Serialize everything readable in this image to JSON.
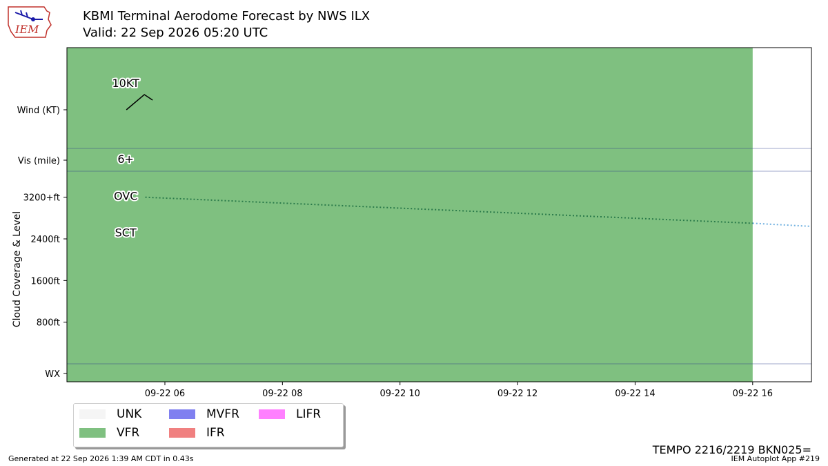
{
  "header": {
    "title_line1": "KBMI Terminal Aerodome Forecast by NWS ILX",
    "title_line2": "Valid: 22 Sep 2026 05:20 UTC",
    "logo_text": "IEM"
  },
  "colors": {
    "vfr": "#7fc080",
    "unk": "#f5f5f5",
    "mvfr": "#8080f0",
    "ifr": "#f08080",
    "lifr": "#ff80ff",
    "frame": "#000000",
    "separator": "#2a3a8a",
    "ceiling_line": "#2a7a4a",
    "ceiling_ext": "#6fb0e0",
    "logo": "#c0302a"
  },
  "legend": {
    "items": [
      {
        "key": "UNK",
        "label": "UNK",
        "color": "#f5f5f5"
      },
      {
        "key": "VFR",
        "label": "VFR",
        "color": "#7fc080"
      },
      {
        "key": "MVFR",
        "label": "MVFR",
        "color": "#8080f0"
      },
      {
        "key": "IFR",
        "label": "IFR",
        "color": "#f08080"
      },
      {
        "key": "LIFR",
        "label": "LIFR",
        "color": "#ff80ff"
      }
    ]
  },
  "footer": {
    "generated": "Generated at 22 Sep 2026 1:39 AM CDT in 0.43s",
    "app": "IEM Autoplot App #219",
    "raw_tempo": "TEMPO 2216/2219 BKN025="
  },
  "chart_data": {
    "type": "timeline",
    "title": "KBMI Terminal Aerodome Forecast by NWS ILX",
    "subtitle": "Valid: 22 Sep 2026 05:20 UTC",
    "ylabel": "Cloud Coverage & Level",
    "x_range": [
      "2026-09-22T04:20",
      "2026-09-22T17:00"
    ],
    "x_ticks": [
      {
        "time": "2026-09-22T06:00",
        "label": "09-22 06"
      },
      {
        "time": "2026-09-22T08:00",
        "label": "09-22 08"
      },
      {
        "time": "2026-09-22T10:00",
        "label": "09-22 10"
      },
      {
        "time": "2026-09-22T12:00",
        "label": "09-22 12"
      },
      {
        "time": "2026-09-22T14:00",
        "label": "09-22 14"
      },
      {
        "time": "2026-09-22T16:00",
        "label": "09-22 16"
      }
    ],
    "y_row_labels": {
      "wind": "Wind (KT)",
      "vis": "Vis (mile)",
      "wx": "WX"
    },
    "cloud_level_range_ft": [
      0,
      3700
    ],
    "cloud_ticks": [
      {
        "value": 3200,
        "label": "3200+ft"
      },
      {
        "value": 2400,
        "label": "2400ft"
      },
      {
        "value": 1600,
        "label": "1600ft"
      },
      {
        "value": 800,
        "label": "800ft"
      }
    ],
    "flight_category_periods": [
      {
        "start": "2026-09-22T04:20",
        "end": "2026-09-22T16:00",
        "category": "VFR"
      }
    ],
    "forecasts": [
      {
        "time": "2026-09-22T05:20",
        "wind_label": "10KT",
        "wind_speed_kt": 10,
        "vis_label": "6+",
        "clouds": [
          {
            "coverage": "OVC",
            "level_ft": 3200
          },
          {
            "coverage": "SCT",
            "level_ft": 2500
          }
        ]
      }
    ],
    "ceiling_trend": [
      {
        "time": "2026-09-22T05:40",
        "level_ft": 3200
      },
      {
        "time": "2026-09-22T16:00",
        "level_ft": 2700
      }
    ],
    "ceiling_extension": [
      {
        "time": "2026-09-22T16:00",
        "level_ft": 2700
      },
      {
        "time": "2026-09-22T17:00",
        "level_ft": 2640
      }
    ]
  }
}
